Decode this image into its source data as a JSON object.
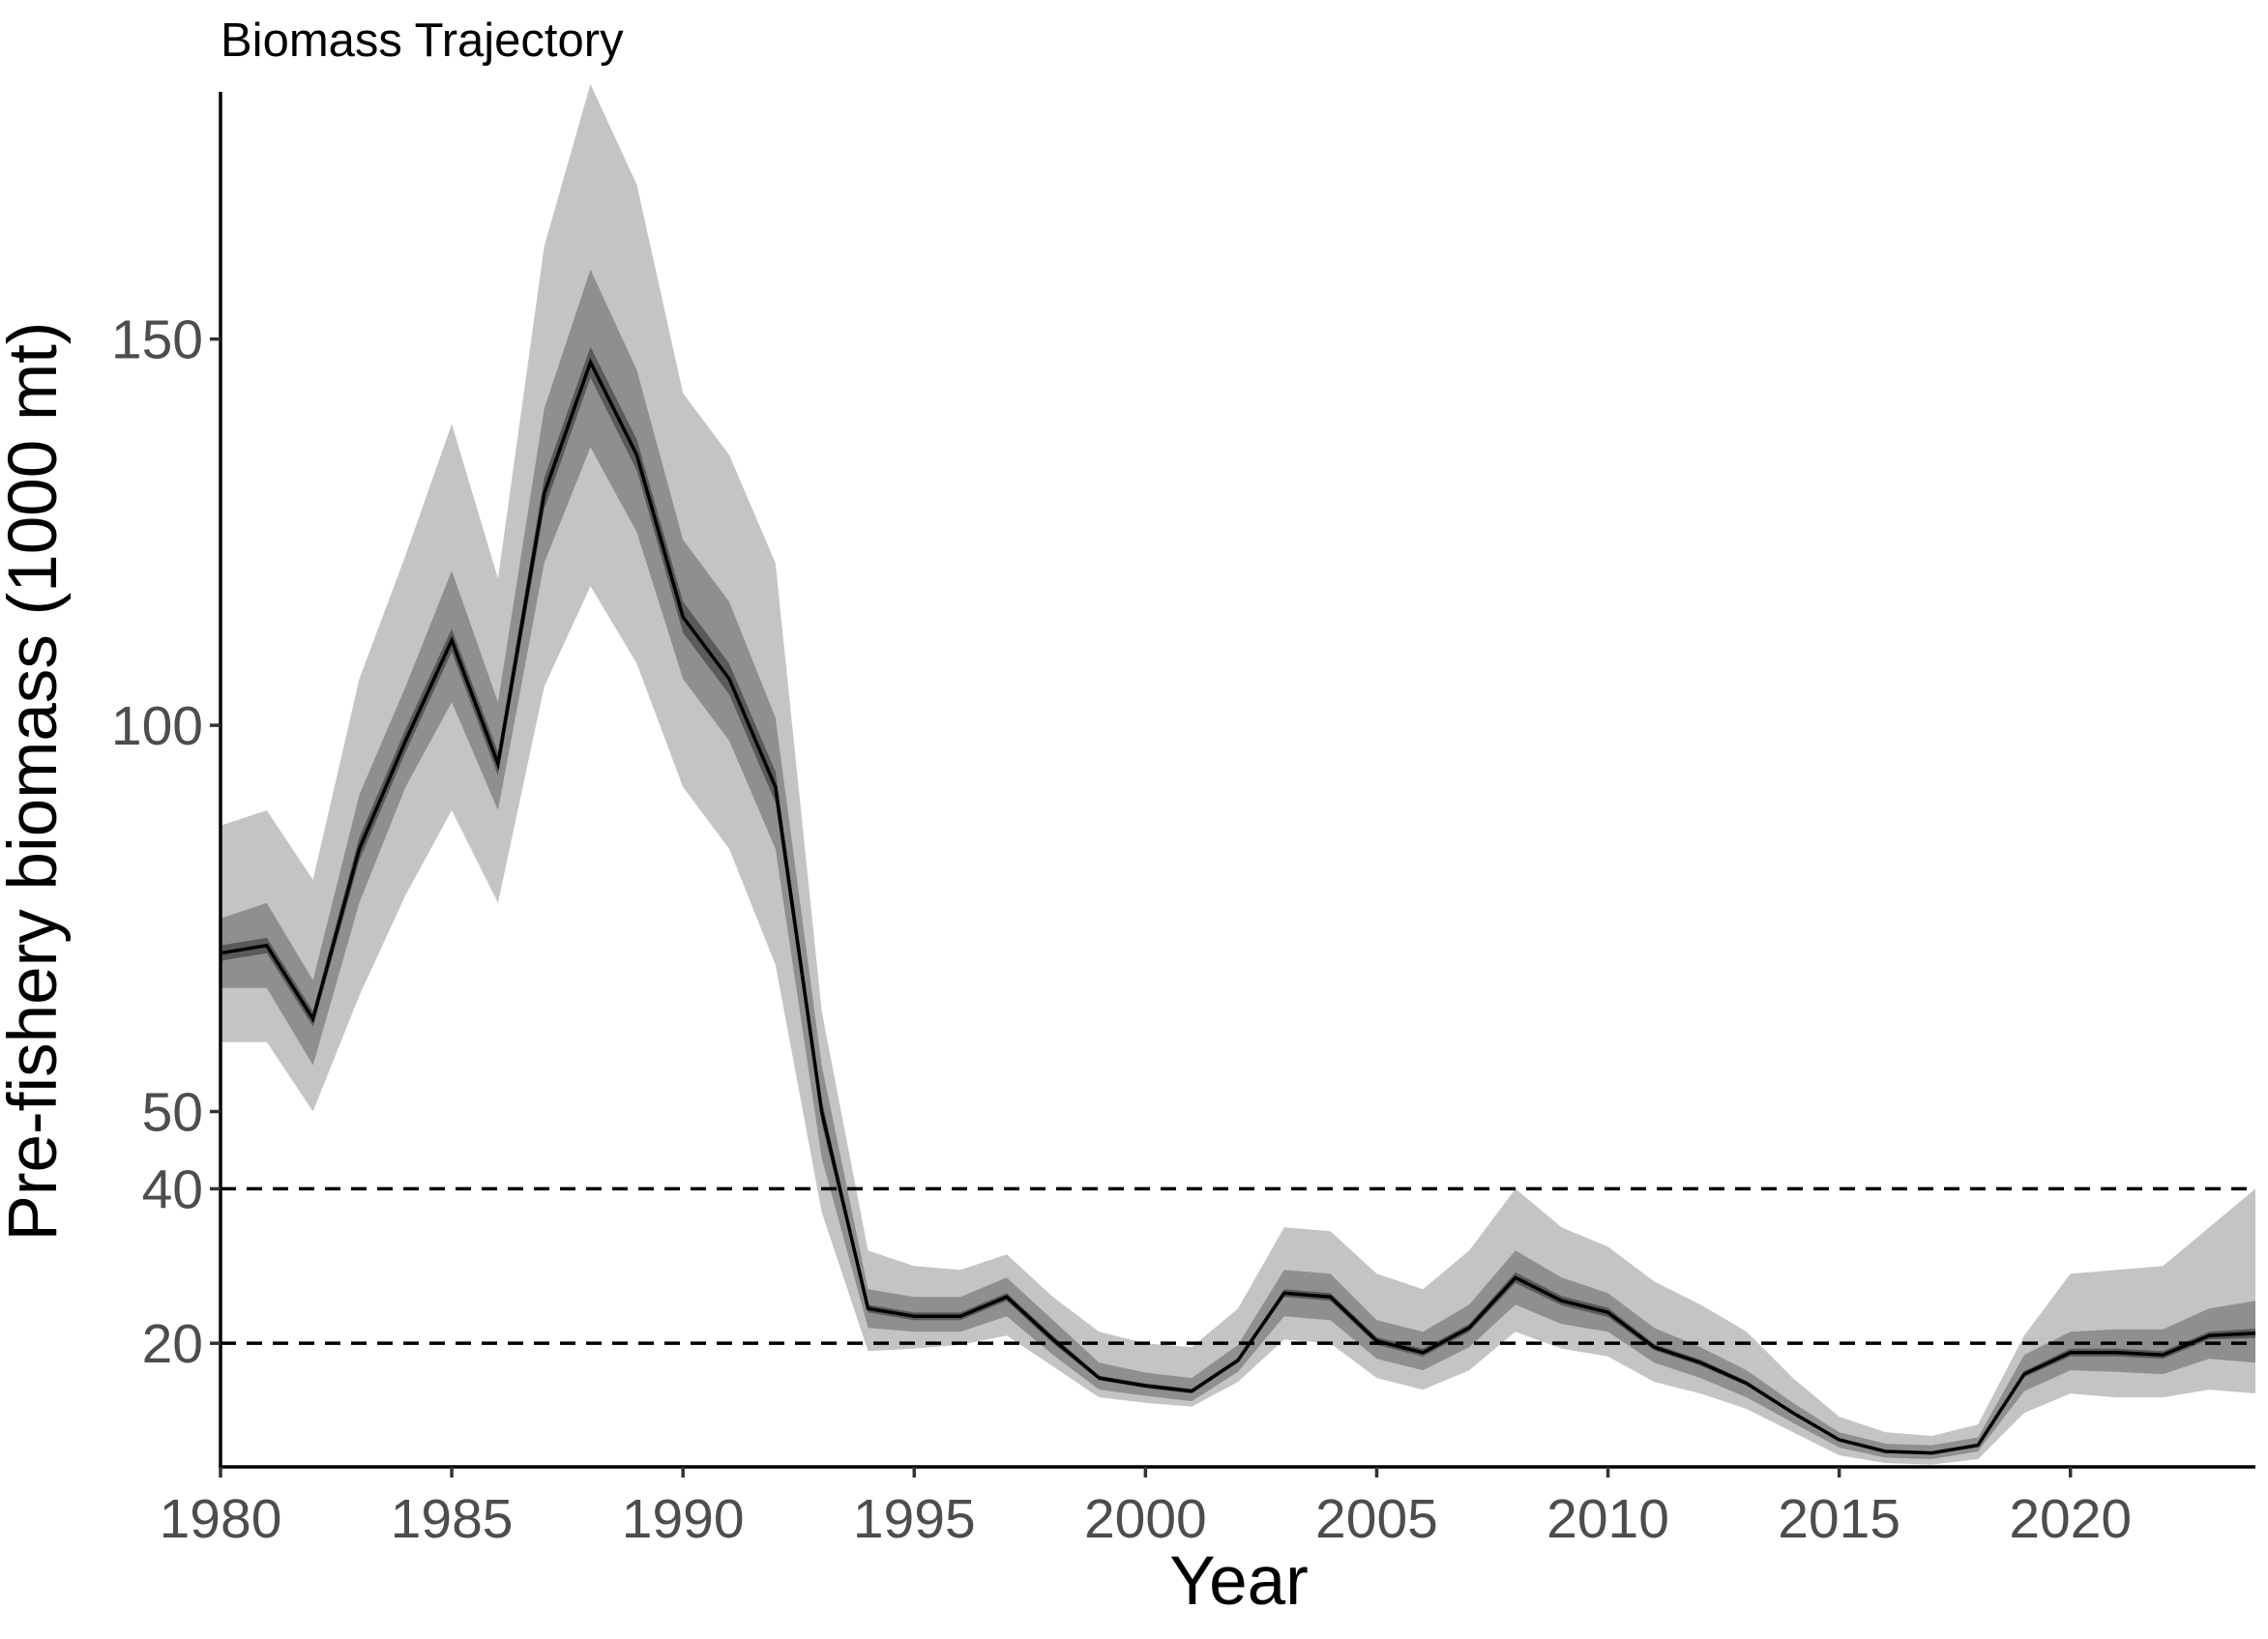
{
  "chart_data": {
    "type": "area",
    "title": "Biomass Trajectory",
    "xlabel": "Year",
    "ylabel": "Pre-fishery biomass (1000 mt)",
    "xlim": [
      1980,
      2024
    ],
    "ylim": [
      4,
      182
    ],
    "x_ticks": [
      1980,
      1985,
      1990,
      1995,
      2000,
      2005,
      2010,
      2015,
      2020
    ],
    "y_ticks": [
      20,
      40,
      50,
      100,
      150
    ],
    "reference_lines": [
      40,
      20
    ],
    "grid": false,
    "legend": "none",
    "colors": {
      "outer_band": "#c4c4c4",
      "middle_band": "#8f8f8f",
      "inner_band": "#5a5a5a",
      "median": "#000000"
    },
    "years": [
      1980,
      1981,
      1982,
      1983,
      1984,
      1985,
      1986,
      1987,
      1988,
      1989,
      1990,
      1991,
      1992,
      1993,
      1994,
      1995,
      1996,
      1997,
      1998,
      1999,
      2000,
      2001,
      2002,
      2003,
      2004,
      2005,
      2006,
      2007,
      2008,
      2009,
      2010,
      2011,
      2012,
      2013,
      2014,
      2015,
      2016,
      2017,
      2018,
      2019,
      2020,
      2021,
      2022,
      2023,
      2024
    ],
    "median": [
      70.5,
      71.5,
      62,
      84,
      98,
      111,
      95,
      130,
      147,
      135,
      114,
      106,
      92,
      50,
      24.5,
      23.5,
      23.5,
      26,
      20.5,
      15.5,
      14.5,
      13.8,
      17.8,
      26.5,
      26,
      20.3,
      18.8,
      22,
      28.5,
      25.5,
      24,
      19.5,
      17.5,
      14.8,
      11,
      7.5,
      6,
      5.8,
      6.8,
      16,
      18.8,
      18.8,
      18.5,
      21,
      21.3
    ],
    "series": [
      {
        "band": "outer",
        "lower": [
          59,
          59,
          50,
          65,
          78,
          89,
          77,
          105,
          118,
          108,
          92,
          84,
          69,
          37,
          19,
          19.3,
          19.8,
          21,
          17,
          13,
          12.3,
          11.8,
          15,
          20.5,
          20,
          15.5,
          14,
          16.5,
          21.5,
          19.3,
          18.3,
          15,
          13.5,
          11.5,
          8.5,
          5.5,
          4.5,
          4.3,
          5,
          11,
          13.5,
          13,
          13,
          14,
          13.5
        ],
        "upper": [
          87,
          89,
          80,
          106,
          122,
          139,
          119,
          162,
          183,
          170,
          143,
          135,
          121,
          63,
          32,
          30,
          29.5,
          31.5,
          26,
          21.5,
          20,
          19.5,
          24.5,
          35,
          34.5,
          29,
          27,
          32,
          40,
          35,
          32.5,
          28,
          25,
          21.5,
          15.5,
          10.5,
          8.5,
          8,
          9.5,
          21,
          29,
          29.5,
          30,
          35,
          40
        ]
      },
      {
        "band": "middle",
        "lower": [
          66,
          66,
          56,
          77,
          92,
          103,
          89,
          121,
          136,
          125,
          106,
          98,
          84,
          44,
          22,
          21.5,
          21.5,
          23.5,
          18.5,
          14,
          13.2,
          12.5,
          16.3,
          23.5,
          23,
          18,
          16.5,
          19.5,
          25,
          22.5,
          21.5,
          17.5,
          15.5,
          13,
          9.7,
          6.5,
          5.2,
          5,
          6,
          13.8,
          16.5,
          16.3,
          16,
          18,
          17.5
        ],
        "upper": [
          75,
          77,
          67,
          91,
          105,
          120,
          103,
          141,
          159,
          146,
          124,
          116,
          101,
          56,
          27,
          26,
          26,
          28.5,
          23,
          17.5,
          16.2,
          15.5,
          19.8,
          29.5,
          29,
          23,
          21.5,
          25,
          32,
          28.5,
          26.5,
          22,
          19.5,
          16.5,
          12.3,
          8.5,
          7,
          6.8,
          7.8,
          18.5,
          21.5,
          21.8,
          21.8,
          24.5,
          25.5
        ]
      },
      {
        "band": "inner",
        "lower": [
          69.5,
          70.5,
          61,
          82.5,
          96.5,
          109.5,
          93.5,
          128,
          145,
          133,
          112,
          104,
          90,
          48.5,
          24,
          23,
          23,
          25.5,
          20,
          15.2,
          14.2,
          13.5,
          17.5,
          26,
          25.5,
          19.8,
          18.3,
          21.5,
          27.8,
          24.9,
          23.4,
          19.1,
          17.1,
          14.5,
          10.8,
          7.3,
          5.8,
          5.6,
          6.6,
          15.6,
          18.3,
          18.3,
          18,
          20.5,
          20.7
        ],
        "upper": [
          71.5,
          72.5,
          63,
          85.5,
          99.5,
          112.5,
          96.5,
          132,
          149,
          137,
          116,
          108,
          94,
          51.5,
          25,
          24,
          24,
          26.5,
          21,
          15.8,
          14.8,
          14.1,
          18.1,
          27,
          26.5,
          20.8,
          19.3,
          22.5,
          29.2,
          26.1,
          24.6,
          19.9,
          17.9,
          15.1,
          11.2,
          7.7,
          6.2,
          6,
          7,
          16.4,
          19.3,
          19.3,
          19,
          21.5,
          21.9
        ]
      }
    ]
  }
}
